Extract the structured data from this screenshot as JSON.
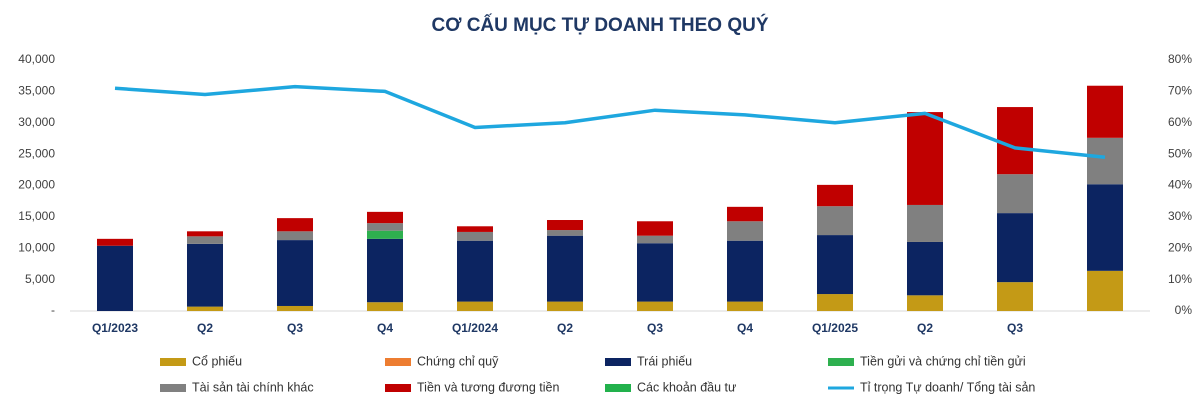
{
  "chart_data": {
    "type": "bar",
    "stacked": true,
    "title": "CƠ CẤU MỤC TỰ DOANH THEO QUÝ",
    "categories": [
      "Q1/2023",
      "Q2",
      "Q3",
      "Q4",
      "Q1/2024",
      "Q2",
      "Q3",
      "Q4",
      "Q1/2025",
      "Q2",
      "Q3",
      null
    ],
    "ylim": [
      0,
      40000
    ],
    "yticks": [
      {
        "value": 0,
        "label": "-"
      },
      {
        "value": 5000,
        "label": "5,000"
      },
      {
        "value": 10000,
        "label": "10,000"
      },
      {
        "value": 15000,
        "label": "15,000"
      },
      {
        "value": 20000,
        "label": "20,000"
      },
      {
        "value": 25000,
        "label": "25,000"
      },
      {
        "value": 30000,
        "label": "30,000"
      },
      {
        "value": 35000,
        "label": "35,000"
      },
      {
        "value": 40000,
        "label": "40,000"
      }
    ],
    "y2lim": [
      0,
      80
    ],
    "y2ticks": [
      {
        "value": 0,
        "label": "0%"
      },
      {
        "value": 10,
        "label": "10%"
      },
      {
        "value": 20,
        "label": "20%"
      },
      {
        "value": 30,
        "label": "30%"
      },
      {
        "value": 40,
        "label": "40%"
      },
      {
        "value": 50,
        "label": "50%"
      },
      {
        "value": 60,
        "label": "60%"
      },
      {
        "value": 70,
        "label": "70%"
      },
      {
        "value": 80,
        "label": "80%"
      }
    ],
    "series": [
      {
        "name": "Cổ phiếu",
        "color": "#c49a16",
        "values": [
          0,
          700,
          800,
          1400,
          1500,
          1500,
          1500,
          1500,
          2700,
          2500,
          4600,
          6400
        ]
      },
      {
        "name": "Chứng chỉ quỹ",
        "color": "#ed7d31",
        "values": [
          0,
          0,
          0,
          0,
          0,
          0,
          0,
          0,
          0,
          0,
          0,
          0
        ]
      },
      {
        "name": "Trái phiếu",
        "color": "#0c2461",
        "values": [
          10400,
          10000,
          10500,
          10100,
          9700,
          10500,
          9300,
          9700,
          9400,
          8500,
          11000,
          13800
        ]
      },
      {
        "name": "Tiền gửi và chứng chỉ tiền gửi",
        "color": "#2eb04f",
        "values": [
          0,
          0,
          0,
          1300,
          0,
          0,
          0,
          0,
          0,
          0,
          0,
          0
        ]
      },
      {
        "name": "Tài sản tài chính khác",
        "color": "#808080",
        "values": [
          0,
          1200,
          1400,
          1200,
          1400,
          900,
          1200,
          3100,
          4600,
          5900,
          6200,
          7400
        ]
      },
      {
        "name": "Tiền và tương đương tiền",
        "color": "#c00000",
        "values": [
          1100,
          800,
          2100,
          1800,
          900,
          1600,
          2300,
          2300,
          3400,
          14800,
          10700,
          8300
        ]
      },
      {
        "name": "Các khoản đầu tư",
        "color": "#22b14c",
        "values": [
          0,
          0,
          0,
          0,
          0,
          0,
          0,
          0,
          0,
          0,
          0,
          0
        ]
      },
      {
        "name": "Tỉ trọng Tự doanh/ Tổng tài sản",
        "color": "#1ea7df",
        "type": "line",
        "axis": "y2",
        "values": [
          71,
          69,
          71.5,
          70,
          58.5,
          60,
          64,
          62.5,
          60,
          63,
          52,
          49
        ]
      }
    ]
  }
}
